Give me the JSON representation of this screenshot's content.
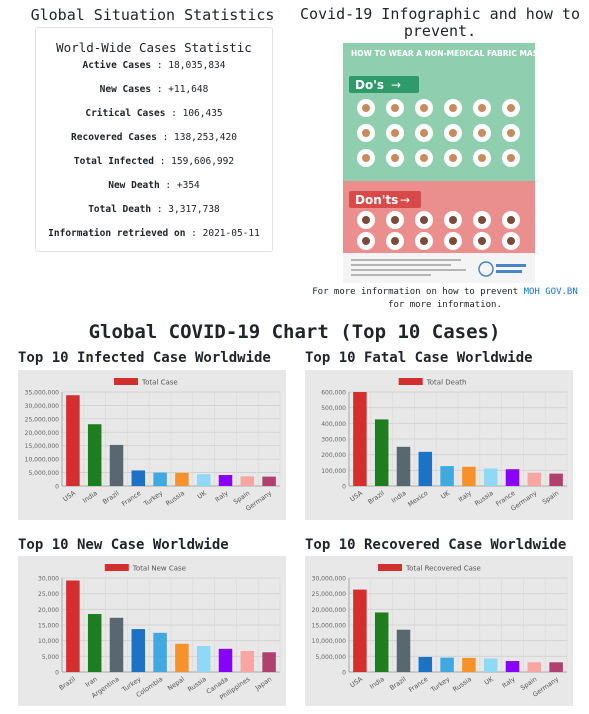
{
  "stats": {
    "section_title": "Global Situation Statistics",
    "card_title": "World-Wide Cases Statistic",
    "items": [
      {
        "label": "Active Cases",
        "value": "18,035,834"
      },
      {
        "label": "New Cases",
        "value": "+11,648"
      },
      {
        "label": "Critical Cases",
        "value": "106,435"
      },
      {
        "label": "Recovered Cases",
        "value": "138,253,420"
      },
      {
        "label": "Total Infected",
        "value": "159,606,992"
      },
      {
        "label": "New Death",
        "value": "+354"
      },
      {
        "label": "Total Death",
        "value": "3,317,738"
      },
      {
        "label": "Information retrieved on",
        "value": "2021-05-11"
      }
    ]
  },
  "infographic": {
    "title": "Covid-19 Infographic and how to prevent.",
    "poster_heading": "HOW TO WEAR A NON-MEDICAL FABRIC MASK SAFELY",
    "dos_label": "Do's",
    "donts_label": "Don'ts",
    "footer_prefix": "For more information on how to prevent",
    "footer_link": "MOH GOV.BN",
    "footer_suffix": "for more information."
  },
  "main_title": "Global COVID-19 Chart (Top 10 Cases)",
  "palette": [
    "#d32f2f",
    "#1e7d1e",
    "#596770",
    "#1c73c6",
    "#40a9e0",
    "#f5932a",
    "#8fd8f6",
    "#8800ff",
    "#f8a6a2",
    "#b0406e"
  ],
  "chart_data": [
    {
      "type": "bar",
      "title": "Top 10 Infected Case Worldwide",
      "legend": "Total Case",
      "categories": [
        "USA",
        "India",
        "Brazil",
        "France",
        "Turkey",
        "Russia",
        "UK",
        "Italy",
        "Spain",
        "Germany"
      ],
      "values": [
        33800000,
        23000000,
        15300000,
        5800000,
        5000000,
        4900000,
        4400000,
        4100000,
        3600000,
        3500000
      ],
      "ylim": [
        0,
        35000000
      ],
      "yticks": [
        "0",
        "5,000,000",
        "10,000,000",
        "15,000,000",
        "20,000,000",
        "25,000,000",
        "30,000,000",
        "35,000,000"
      ],
      "ytick_values": [
        0,
        5000000,
        10000000,
        15000000,
        20000000,
        25000000,
        30000000,
        35000000
      ]
    },
    {
      "type": "bar",
      "title": "Top 10 Fatal Case Worldwide",
      "legend": "Total Death",
      "categories": [
        "USA",
        "Brazil",
        "India",
        "Mexico",
        "UK",
        "Italy",
        "Russia",
        "France",
        "Germany",
        "Spain"
      ],
      "values": [
        600000,
        425000,
        250000,
        218000,
        127000,
        123000,
        112000,
        107000,
        85000,
        79000
      ],
      "ylim": [
        0,
        600000
      ],
      "yticks": [
        "0",
        "100,000",
        "200,000",
        "300,000",
        "400,000",
        "500,000",
        "600,000"
      ],
      "ytick_values": [
        0,
        100000,
        200000,
        300000,
        400000,
        500000,
        600000
      ]
    },
    {
      "type": "bar",
      "title": "Top 10 New Case Worldwide",
      "legend": "Total New Case",
      "categories": [
        "Brazil",
        "Iran",
        "Argentina",
        "Turkey",
        "Colombia",
        "Nepal",
        "Russia",
        "Canada",
        "Philippines",
        "Japan"
      ],
      "values": [
        29200,
        18500,
        17300,
        13700,
        12500,
        9000,
        8300,
        7400,
        6700,
        6300
      ],
      "ylim": [
        0,
        30000
      ],
      "yticks": [
        "0",
        "5,000",
        "10,000",
        "15,000",
        "20,000",
        "25,000",
        "30,000"
      ],
      "ytick_values": [
        0,
        5000,
        10000,
        15000,
        20000,
        25000,
        30000
      ]
    },
    {
      "type": "bar",
      "title": "Top 10 Recovered Case Worldwide",
      "legend": "Total Recovered Case",
      "categories": [
        "USA",
        "India",
        "Brazil",
        "France",
        "Turkey",
        "Russia",
        "UK",
        "Italy",
        "Spain",
        "Germany"
      ],
      "values": [
        26300000,
        19000000,
        13500000,
        4800000,
        4600000,
        4500000,
        4300000,
        3500000,
        3100000,
        3100000
      ],
      "ylim": [
        0,
        30000000
      ],
      "yticks": [
        "0",
        "5,000,000",
        "10,000,000",
        "15,000,000",
        "20,000,000",
        "25,000,000",
        "30,000,000"
      ],
      "ytick_values": [
        0,
        5000000,
        10000000,
        15000000,
        20000000,
        25000000,
        30000000
      ]
    }
  ]
}
